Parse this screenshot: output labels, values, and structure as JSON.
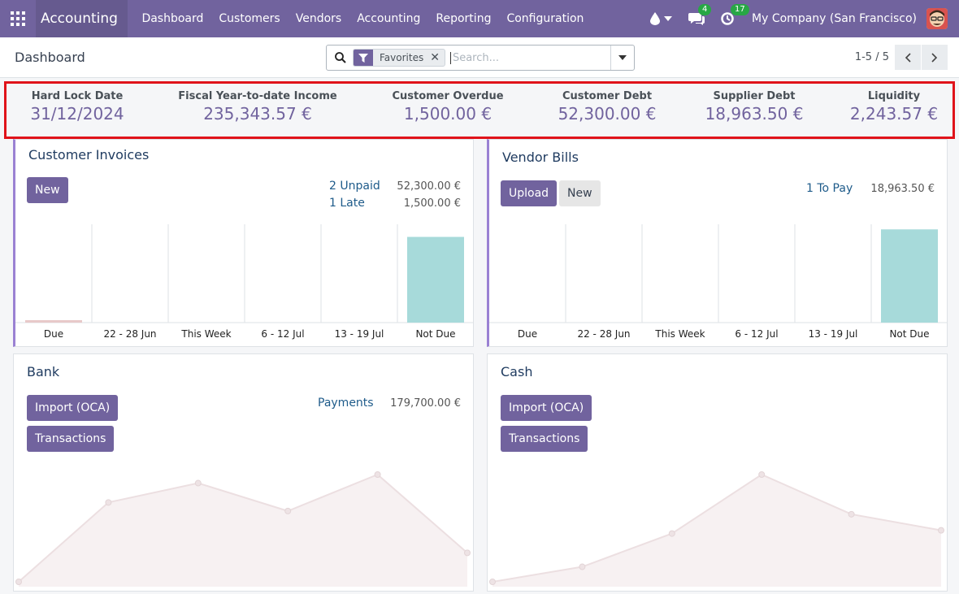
{
  "navbar": {
    "app_name": "Accounting",
    "menu": [
      "Dashboard",
      "Customers",
      "Vendors",
      "Accounting",
      "Reporting",
      "Configuration"
    ],
    "messages_badge": "4",
    "activities_badge": "17",
    "company": "My Company (San Francisco)"
  },
  "control": {
    "breadcrumb": "Dashboard",
    "search_facet": "Favorites",
    "search_placeholder": "Search...",
    "pager": "1-5 / 5"
  },
  "kpis": [
    {
      "label": "Hard Lock Date",
      "value": "31/12/2024"
    },
    {
      "label": "Fiscal Year-to-date Income",
      "value": "235,343.57 €"
    },
    {
      "label": "Customer Overdue",
      "value": "1,500.00 €"
    },
    {
      "label": "Customer Debt",
      "value": "52,300.00 €"
    },
    {
      "label": "Supplier Debt",
      "value": "18,963.50 €"
    },
    {
      "label": "Liquidity",
      "value": "2,243.57 €"
    }
  ],
  "customer_invoices": {
    "title": "Customer Invoices",
    "new_label": "New",
    "unpaid_label": "2 Unpaid",
    "unpaid_amount": "52,300.00 €",
    "late_label": "1 Late",
    "late_amount": "1,500.00 €"
  },
  "vendor_bills": {
    "title": "Vendor Bills",
    "upload_label": "Upload",
    "new_label": "New",
    "to_pay_label": "1 To Pay",
    "to_pay_amount": "18,963.50 €"
  },
  "bank": {
    "title": "Bank",
    "import_label": "Import (OCA)",
    "transactions_label": "Transactions",
    "payments_label": "Payments",
    "payments_amount": "179,700.00 €"
  },
  "cash": {
    "title": "Cash",
    "import_label": "Import (OCA)",
    "transactions_label": "Transactions"
  },
  "chart_data": [
    {
      "type": "bar",
      "title": "Customer Invoices",
      "categories": [
        "Due",
        "22 - 28 Jun",
        "This Week",
        "6 - 12 Jul",
        "13 - 19 Jul",
        "Not Due"
      ],
      "values": [
        1500,
        0,
        0,
        0,
        0,
        52300
      ],
      "colors": [
        "#e8c9c9",
        "#a7dada",
        "#a7dada",
        "#a7dada",
        "#a7dada",
        "#a7dada"
      ],
      "ylim": [
        0,
        60000
      ]
    },
    {
      "type": "bar",
      "title": "Vendor Bills",
      "categories": [
        "Due",
        "22 - 28 Jun",
        "This Week",
        "6 - 12 Jul",
        "13 - 19 Jul",
        "Not Due"
      ],
      "values": [
        0,
        0,
        0,
        0,
        0,
        18963.5
      ],
      "colors": [
        "#a7dada",
        "#a7dada",
        "#a7dada",
        "#a7dada",
        "#a7dada",
        "#a7dada"
      ],
      "ylim": [
        0,
        20000
      ]
    },
    {
      "type": "area",
      "title": "Bank",
      "values": [
        0,
        0.74,
        0.92,
        0.66,
        1.0,
        0.27
      ],
      "ylim": [
        0,
        1
      ]
    },
    {
      "type": "area",
      "title": "Cash",
      "values": [
        0,
        0.14,
        0.45,
        1.0,
        0.63,
        0.48
      ],
      "ylim": [
        0,
        1
      ]
    }
  ]
}
